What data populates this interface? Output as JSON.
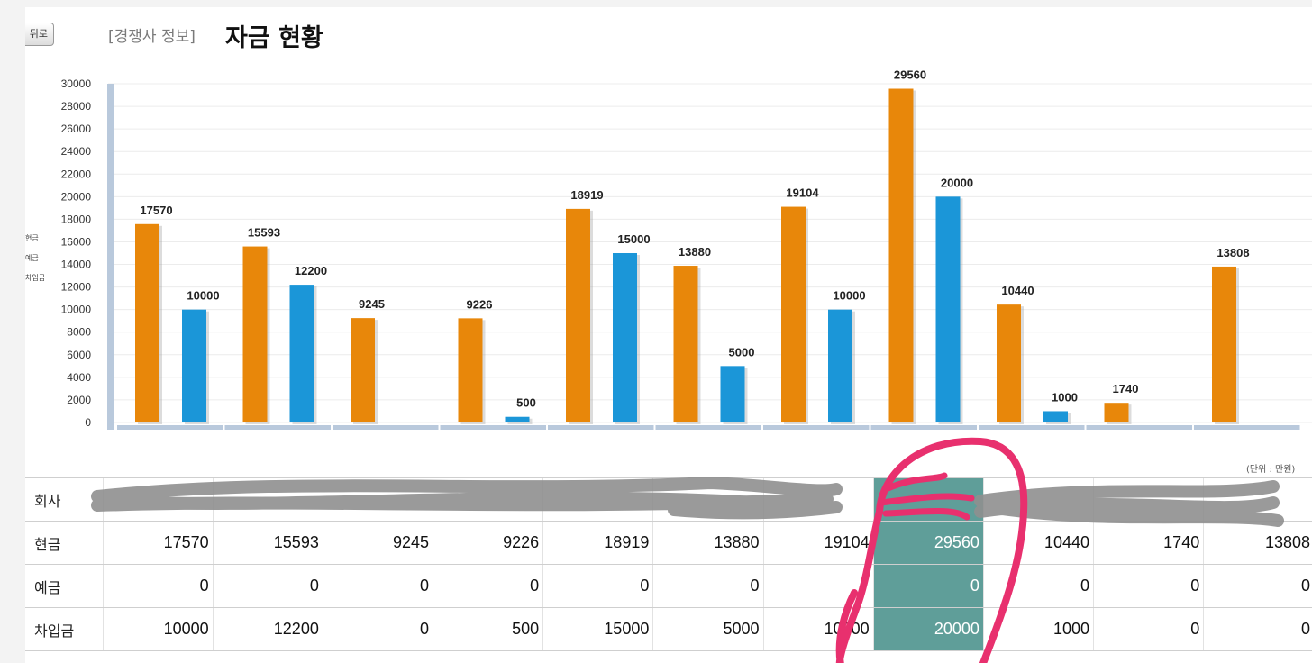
{
  "header": {
    "back_label": "뒤로",
    "section_label": "[경쟁사 정보]",
    "title": "자금 현황"
  },
  "legend": [
    "현금",
    "예금",
    "차입금"
  ],
  "unit_note": "(단위 : 만원)",
  "colors": {
    "cash": "#e8870a",
    "loan": "#1b96d8",
    "highlight": "#5f9e99",
    "scribble_pink": "#e8306e",
    "scribble_gray": "#8f8f8f"
  },
  "chart_data": {
    "type": "bar",
    "title": "",
    "xlabel": "",
    "ylabel": "",
    "ylim": [
      0,
      30000
    ],
    "yticks": [
      0,
      2000,
      4000,
      6000,
      8000,
      10000,
      12000,
      14000,
      16000,
      18000,
      20000,
      22000,
      24000,
      26000,
      28000,
      30000
    ],
    "grid": true,
    "categories": [
      "",
      "",
      "",
      "",
      "",
      "",
      "",
      "",
      "",
      "",
      ""
    ],
    "series": [
      {
        "name": "현금",
        "values": [
          17570,
          15593,
          9245,
          9226,
          18919,
          13880,
          19104,
          29560,
          10440,
          1740,
          13808
        ]
      },
      {
        "name": "예금",
        "values": [
          0,
          0,
          0,
          0,
          0,
          0,
          0,
          0,
          0,
          0,
          0
        ]
      },
      {
        "name": "차입금",
        "values": [
          10000,
          12200,
          0,
          500,
          15000,
          5000,
          10000,
          20000,
          1000,
          0,
          0
        ]
      }
    ]
  },
  "table": {
    "rows": [
      {
        "label": "회사",
        "cells": [
          "",
          "",
          "",
          "",
          "",
          "",
          "",
          "",
          "",
          "",
          ""
        ]
      },
      {
        "label": "현금",
        "cells": [
          "17570",
          "15593",
          "9245",
          "9226",
          "18919",
          "13880",
          "19104",
          "29560",
          "10440",
          "1740",
          "13808"
        ]
      },
      {
        "label": "예금",
        "cells": [
          "0",
          "0",
          "0",
          "0",
          "0",
          "0",
          "",
          "0",
          "0",
          "0",
          "0"
        ]
      },
      {
        "label": "차입금",
        "cells": [
          "10000",
          "12200",
          "0",
          "500",
          "15000",
          "5000",
          "10000",
          "20000",
          "1000",
          "0",
          "0"
        ]
      }
    ],
    "highlight_column": 7
  }
}
